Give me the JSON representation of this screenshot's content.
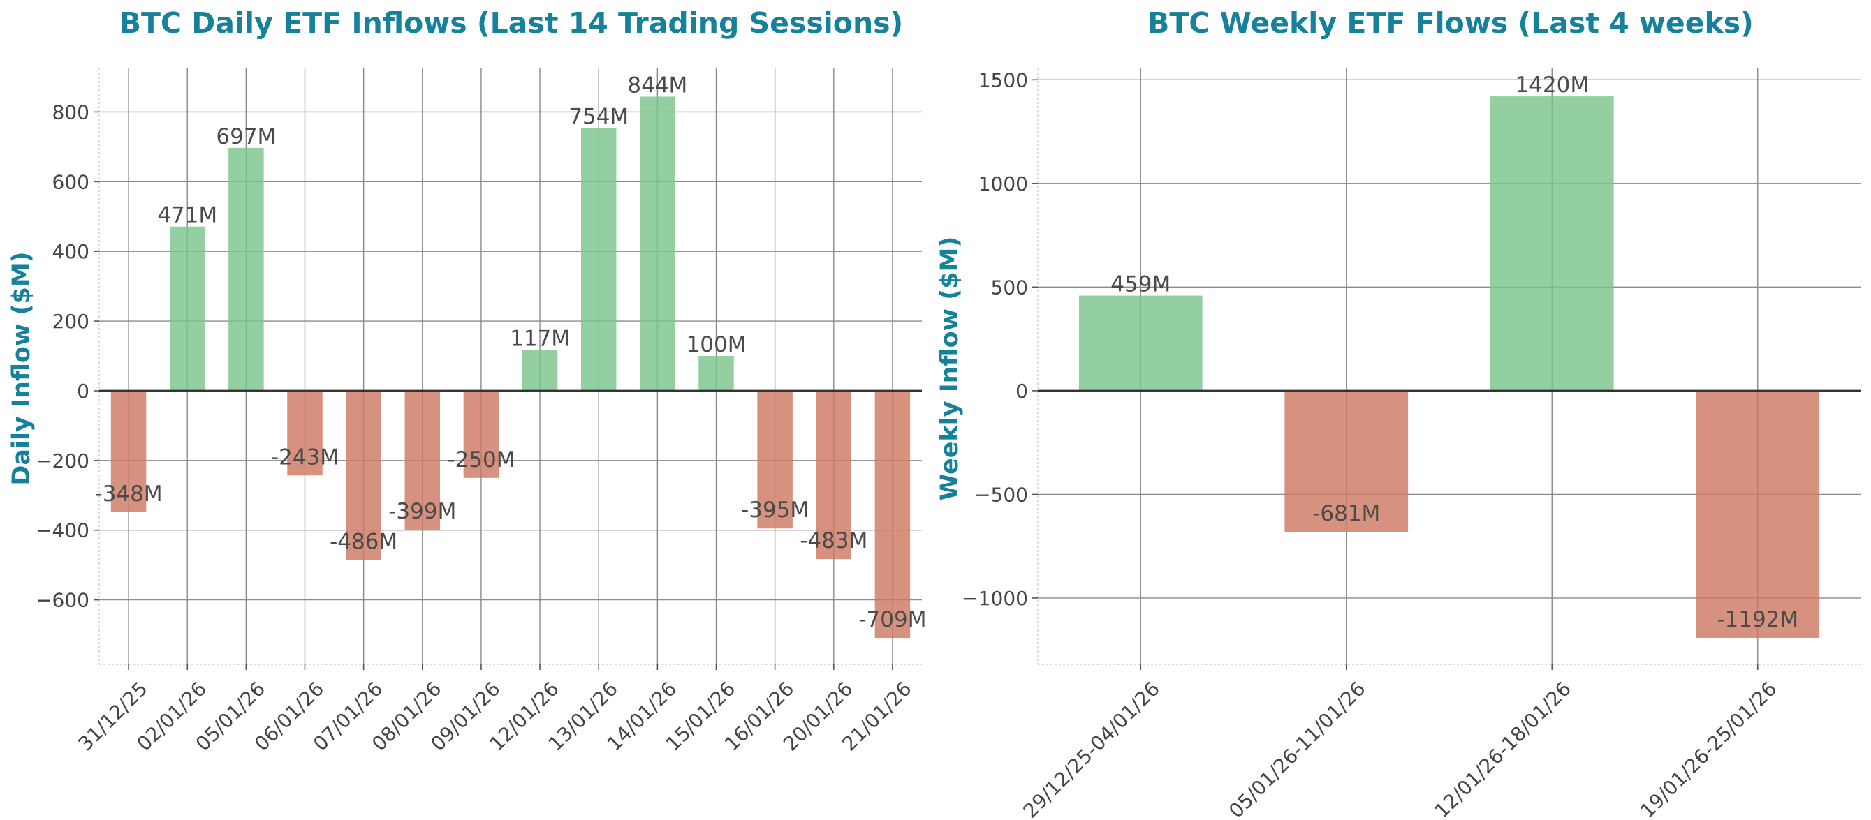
{
  "colors": {
    "positive": "#7cc48d",
    "negative": "#cd7a63",
    "title": "#16819a",
    "text": "#444444"
  },
  "chart_data": [
    {
      "type": "bar",
      "title": "BTC Daily ETF Inflows (Last 14 Trading Sessions)",
      "xlabel": "",
      "ylabel": "Daily Inflow ($M)",
      "categories": [
        "31/12/25",
        "02/01/26",
        "05/01/26",
        "06/01/26",
        "07/01/26",
        "08/01/26",
        "09/01/26",
        "12/01/26",
        "13/01/26",
        "14/01/26",
        "15/01/26",
        "16/01/26",
        "20/01/26",
        "21/01/26"
      ],
      "values": [
        -348,
        471,
        697,
        -243,
        -486,
        -399,
        -250,
        117,
        754,
        844,
        100,
        -395,
        -483,
        -709
      ],
      "data_labels": [
        "-348M",
        "471M",
        "697M",
        "-243M",
        "-486M",
        "-399M",
        "-250M",
        "117M",
        "754M",
        "844M",
        "100M",
        "-395M",
        "-483M",
        "-709M"
      ],
      "yticks": [
        800,
        600,
        400,
        200,
        0,
        -200,
        -400,
        -600
      ],
      "ytick_labels": [
        "800",
        "600",
        "400",
        "200",
        "0",
        "−200",
        "−400",
        "−600"
      ],
      "ylim": [
        -785,
        925
      ],
      "grid": true,
      "legend": "none"
    },
    {
      "type": "bar",
      "title": "BTC Weekly ETF Flows (Last 4 weeks)",
      "xlabel": "",
      "ylabel": "Weekly Inflow ($M)",
      "categories": [
        "29/12/25-04/01/26",
        "05/01/26-11/01/26",
        "12/01/26-18/01/26",
        "19/01/26-25/01/26"
      ],
      "values": [
        459,
        -681,
        1420,
        -1192
      ],
      "data_labels": [
        "459M",
        "-681M",
        "1420M",
        "-1192M"
      ],
      "yticks": [
        1500,
        1000,
        500,
        0,
        -500,
        -1000
      ],
      "ytick_labels": [
        "1500",
        "1000",
        "500",
        "0",
        "−500",
        "−1000"
      ],
      "ylim": [
        -1320,
        1555
      ],
      "grid": true,
      "legend": "none"
    }
  ]
}
